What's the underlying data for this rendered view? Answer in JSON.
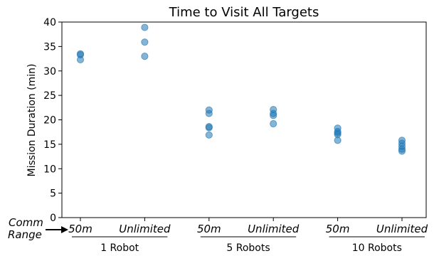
{
  "chart_data": {
    "type": "scatter",
    "title": "Time to Visit All Targets",
    "xlabel": "",
    "ylabel": "Mission Duration (min)",
    "ylim": [
      0,
      40
    ],
    "yticks": [
      0,
      5,
      10,
      15,
      20,
      25,
      30,
      35,
      40
    ],
    "grid": false,
    "categories": [
      "50m",
      "Unlimited",
      "50m",
      "Unlimited",
      "50m",
      "Unlimited"
    ],
    "groups": [
      "1 Robot",
      "5 Robots",
      "10 Robots"
    ],
    "series": [
      {
        "values": [
          [
            33.5,
            33.3,
            32.3
          ],
          [
            38.9,
            35.9,
            33.0
          ],
          [
            22.0,
            21.3,
            18.6,
            18.4,
            16.9
          ],
          [
            22.1,
            21.3,
            20.9,
            19.2
          ],
          [
            18.3,
            17.6,
            17.3,
            17.0,
            15.8
          ],
          [
            15.8,
            15.2,
            14.6,
            14.0,
            13.6
          ]
        ]
      }
    ],
    "marker_color": "#1f77b4",
    "annotation": {
      "line1": "Comm",
      "line2": "Range"
    }
  }
}
